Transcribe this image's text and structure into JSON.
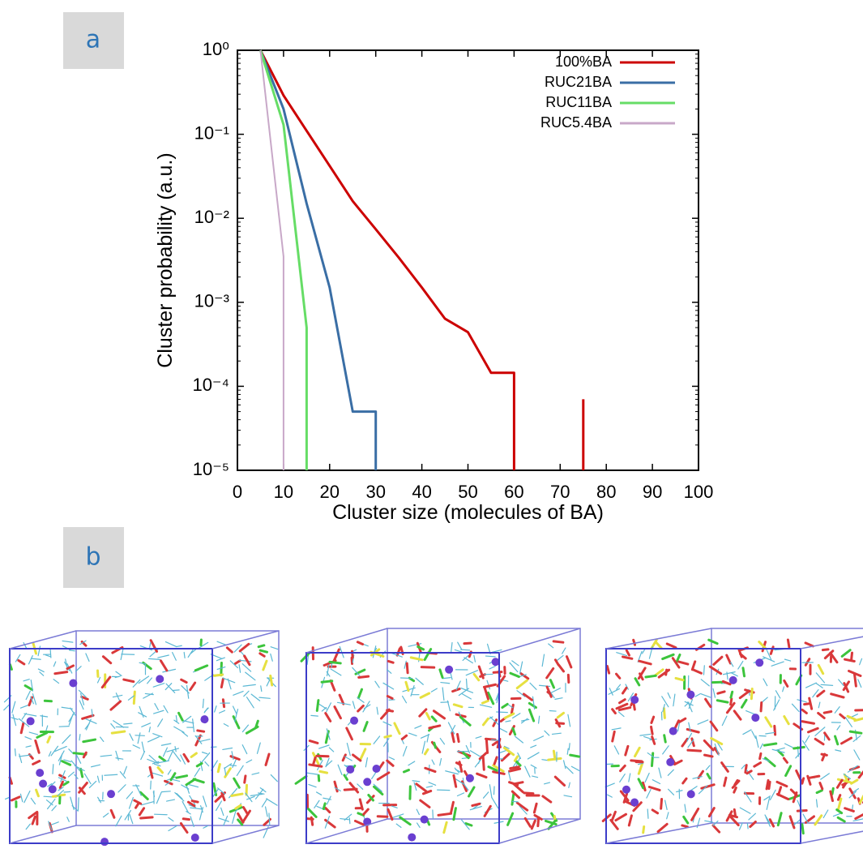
{
  "panels": [
    "a",
    "b"
  ],
  "chart_data": {
    "type": "line",
    "xlabel": "Cluster size (molecules of BA)",
    "ylabel": "Cluster probability (a.u.)",
    "xlim": [
      0,
      100
    ],
    "xticks": [
      0,
      10,
      20,
      30,
      40,
      50,
      60,
      70,
      80,
      90,
      100
    ],
    "ylim": [
      1e-05,
      1
    ],
    "log_y": true,
    "yticks": [
      {
        "value": 1e-05,
        "label": "10⁻⁵"
      },
      {
        "value": 0.0001,
        "label": "10⁻⁴"
      },
      {
        "value": 0.001,
        "label": "10⁻³"
      },
      {
        "value": 0.01,
        "label": "10⁻²"
      },
      {
        "value": 0.1,
        "label": "10⁻¹"
      },
      {
        "value": 1,
        "label": "10⁰"
      }
    ],
    "legend": "upper right",
    "series": [
      {
        "name": "100%BA",
        "color": "#cc0000",
        "x": [
          5,
          10,
          15,
          20,
          25,
          30,
          35,
          40,
          45,
          50,
          55,
          60,
          60,
          null,
          75,
          75
        ],
        "values": [
          1,
          0.29,
          0.11,
          0.042,
          0.016,
          0.0074,
          0.0034,
          0.0015,
          0.00064,
          0.00044,
          0.000145,
          0.000145,
          1e-05,
          null,
          1e-05,
          7e-05
        ]
      },
      {
        "name": "RUC21BA",
        "color": "#3a6ea5",
        "x": [
          5,
          10,
          15,
          20,
          25,
          30,
          30
        ],
        "values": [
          1,
          0.2,
          0.015,
          0.0015,
          5e-05,
          5e-05,
          1e-05
        ]
      },
      {
        "name": "RUC11BA",
        "color": "#66dd66",
        "x": [
          5,
          10,
          15,
          15
        ],
        "values": [
          1,
          0.13,
          0.0005,
          1e-05
        ]
      },
      {
        "name": "RUC5.4BA",
        "color": "#c8a8c8",
        "x": [
          5,
          10,
          10
        ],
        "values": [
          1,
          0.0035,
          1e-05
        ]
      }
    ]
  }
}
